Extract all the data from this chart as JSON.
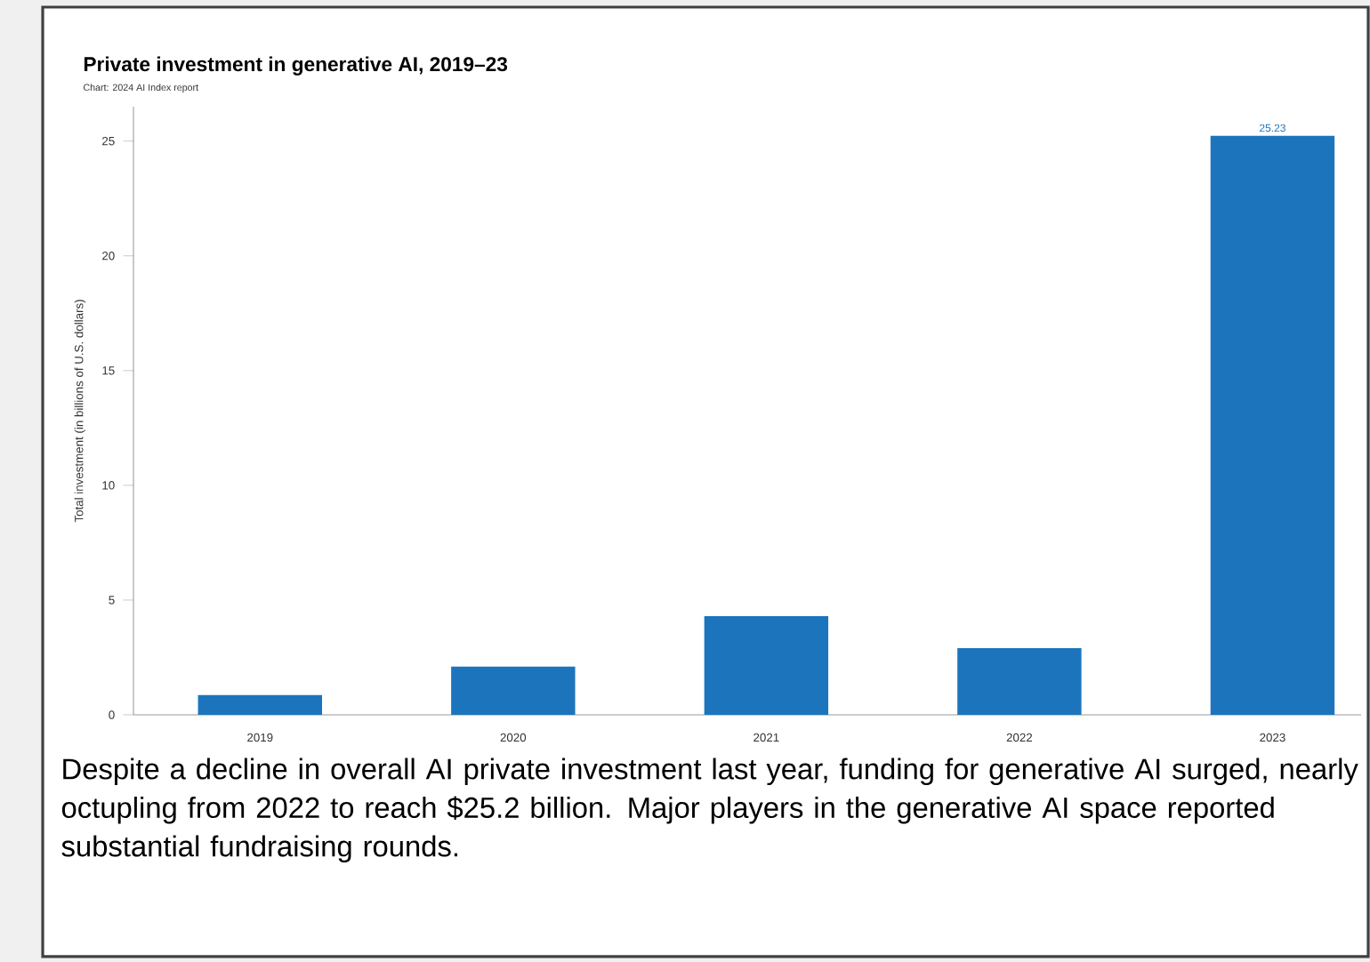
{
  "chart_data": {
    "type": "bar",
    "title": "Private investment in generative AI, 2019–23",
    "subtitle": "Chart: 2024 AI Index report",
    "ylabel": "Total investment (in billions of U.S. dollars)",
    "categories": [
      "2019",
      "2020",
      "2021",
      "2022",
      "2023"
    ],
    "values": [
      0.86,
      2.1,
      4.3,
      2.9,
      25.23
    ],
    "value_labels": [
      null,
      null,
      null,
      null,
      "25.23"
    ],
    "color": "#1c75bc",
    "ylim": [
      0,
      26.5
    ],
    "yticks": [
      0,
      5,
      10,
      15,
      20,
      25
    ],
    "grid": false,
    "annotations": [
      "Despite a decline in overall AI private investment last year, funding for generative AI surged, nearly octupling from 2022 to reach $25.2 billion. Major players in the generative AI space reported substantial fundraising rounds."
    ]
  }
}
